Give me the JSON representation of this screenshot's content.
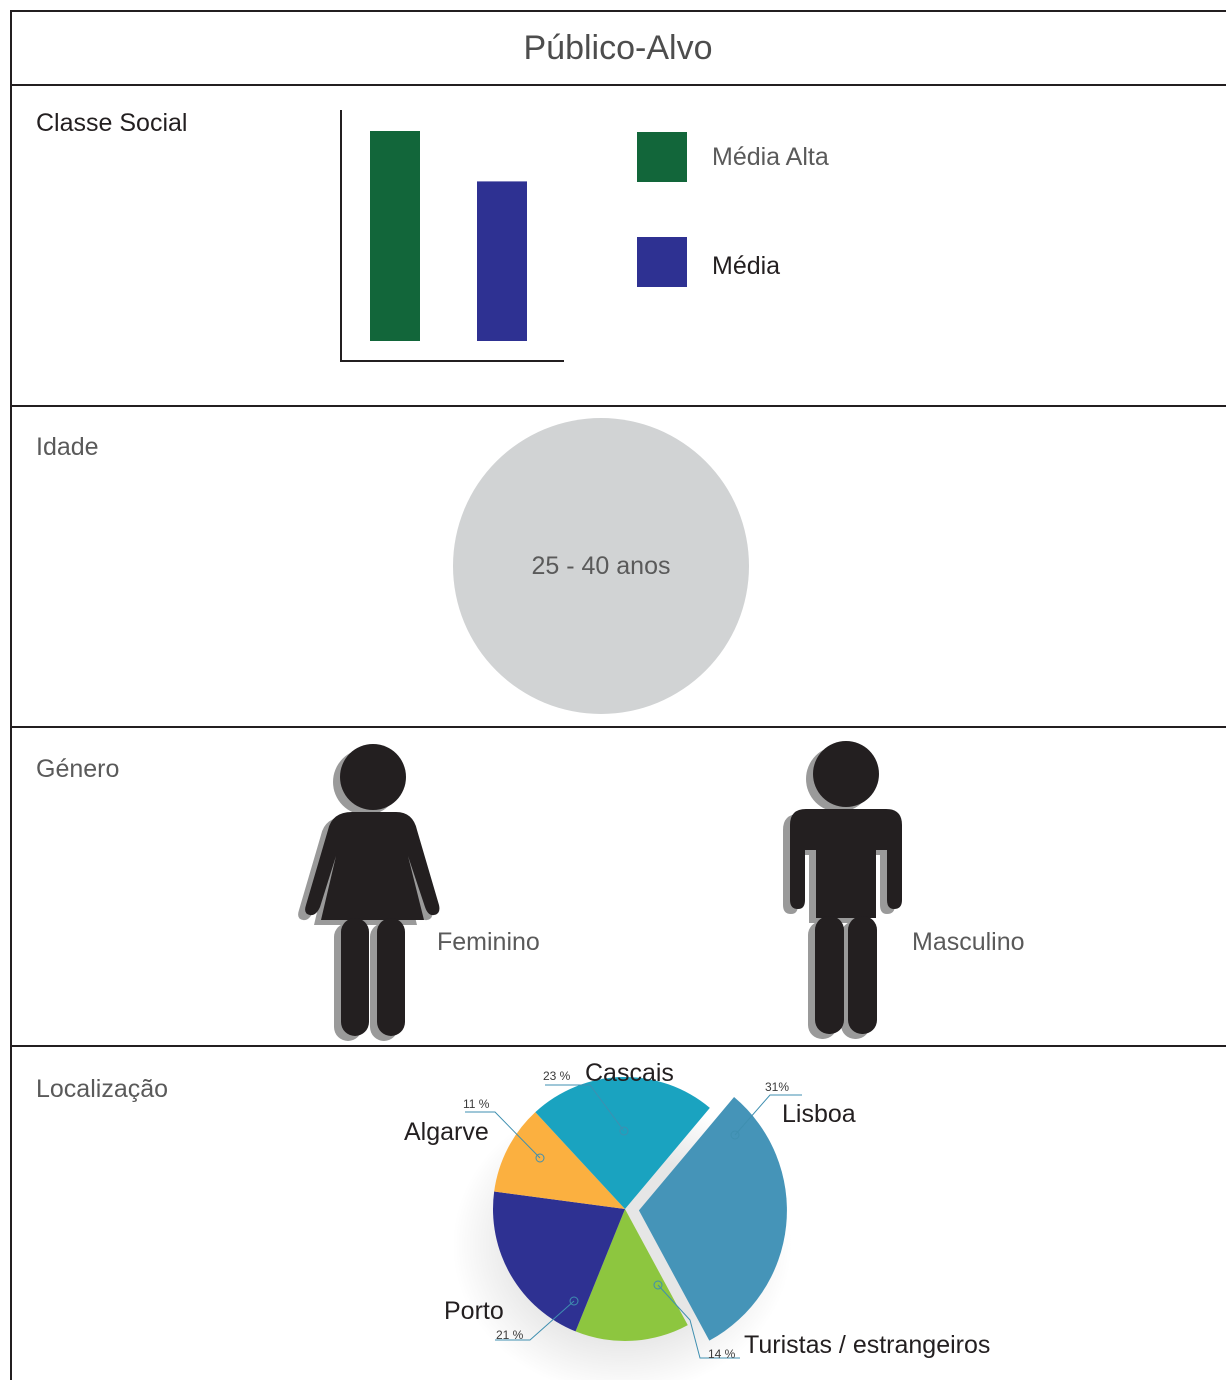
{
  "title": "Público-Alvo",
  "sections": {
    "classe_social": {
      "label": "Classe Social",
      "legend": [
        {
          "label": "Média Alta",
          "color": "#12663a"
        },
        {
          "label": "Média",
          "color": "#2e3192"
        }
      ]
    },
    "idade": {
      "label": "Idade",
      "value": "25 - 40 anos",
      "circle_color": "#d1d3d4"
    },
    "genero": {
      "label": "Género",
      "female_label": "Feminino",
      "male_label": "Masculino",
      "female_icon": "female-figure-icon",
      "male_icon": "male-figure-icon"
    },
    "localizacao": {
      "label": "Localização"
    }
  },
  "chart_data": [
    {
      "type": "bar",
      "categories": [
        "Média Alta",
        "Média"
      ],
      "values": [
        100,
        76
      ],
      "ylim": [
        0,
        110
      ],
      "colors": [
        "#12663a",
        "#2e3192"
      ],
      "grid": false,
      "legend_position": "right"
    },
    {
      "type": "pie",
      "slices": [
        {
          "label": "Lisboa",
          "percent": "31%",
          "value": 31,
          "color": "#4594b8"
        },
        {
          "label": "Turistas / estrangeiros",
          "percent": "14 %",
          "value": 14,
          "color": "#8dc63f"
        },
        {
          "label": "Porto",
          "percent": "21 %",
          "value": 21,
          "color": "#2e3192"
        },
        {
          "label": "Algarve",
          "percent": "11 %",
          "value": 11,
          "color": "#fbb040"
        },
        {
          "label": "Cascais",
          "percent": "23 %",
          "value": 23,
          "color": "#1aa3c0"
        }
      ]
    }
  ]
}
